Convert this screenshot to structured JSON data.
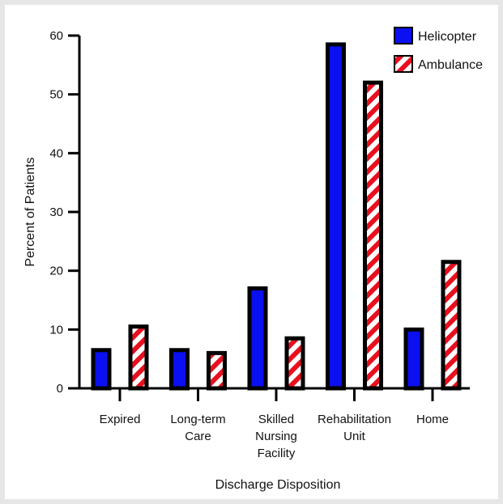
{
  "chart_data": {
    "type": "bar",
    "title": "",
    "xlabel": "Discharge Disposition",
    "ylabel": "Percent of Patients",
    "ylim": [
      0,
      60
    ],
    "yticks": [
      0,
      10,
      20,
      30,
      40,
      50,
      60
    ],
    "grid": false,
    "legend_position": "top-right",
    "categories": [
      [
        "Expired"
      ],
      [
        "Long-term",
        "Care"
      ],
      [
        "Skilled",
        "Nursing",
        "Facility"
      ],
      [
        "Rehabilitation",
        "Unit"
      ],
      [
        "Home"
      ]
    ],
    "series": [
      {
        "name": "Helicopter",
        "values": [
          6.5,
          6.5,
          17,
          58.5,
          10
        ],
        "color": "#0a10f0",
        "pattern": "solid"
      },
      {
        "name": "Ambulance",
        "values": [
          10.5,
          6,
          8.5,
          52,
          21.5
        ],
        "color": "#e8101e",
        "pattern": "diagonal-stripes"
      }
    ]
  }
}
